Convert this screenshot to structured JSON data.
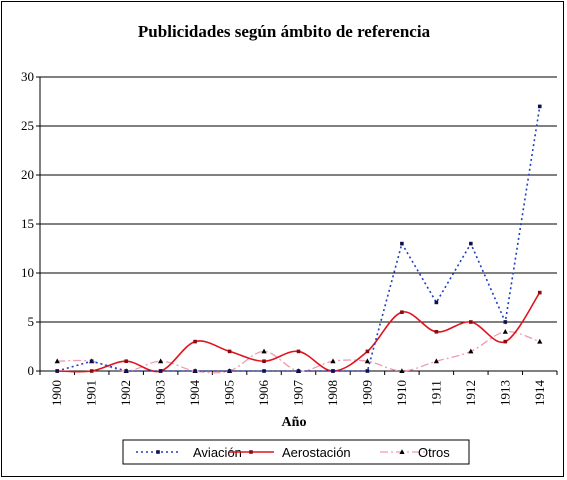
{
  "chart_data": {
    "type": "line",
    "title": "Publicidades según ámbito de referencia",
    "xlabel": "Año",
    "ylabel": "",
    "x": [
      "1900",
      "1901",
      "1902",
      "1903",
      "1904",
      "1905",
      "1906",
      "1907",
      "1908",
      "1909",
      "1910",
      "1911",
      "1912",
      "1913",
      "1914"
    ],
    "ylim": [
      0,
      30
    ],
    "yticks": [
      0,
      5,
      10,
      15,
      20,
      25,
      30
    ],
    "grid": true,
    "legend_position": "bottom",
    "series": [
      {
        "name": "Aviación",
        "color": "#1f3fbf",
        "style": "dotted-marker",
        "values": [
          0,
          1,
          0,
          0,
          0,
          0,
          0,
          0,
          0,
          0,
          13,
          7,
          13,
          5,
          27
        ]
      },
      {
        "name": "Aerostación",
        "color": "#e0141e",
        "style": "solid-marker",
        "values": [
          0,
          0,
          1,
          0,
          3,
          2,
          1,
          2,
          0,
          2,
          6,
          4,
          5,
          3,
          8
        ]
      },
      {
        "name": "Otros",
        "color": "#f29ab0",
        "style": "dashdot-triangle",
        "values": [
          1,
          1,
          0,
          1,
          0,
          0,
          2,
          0,
          1,
          1,
          0,
          1,
          2,
          4,
          3
        ]
      }
    ]
  }
}
